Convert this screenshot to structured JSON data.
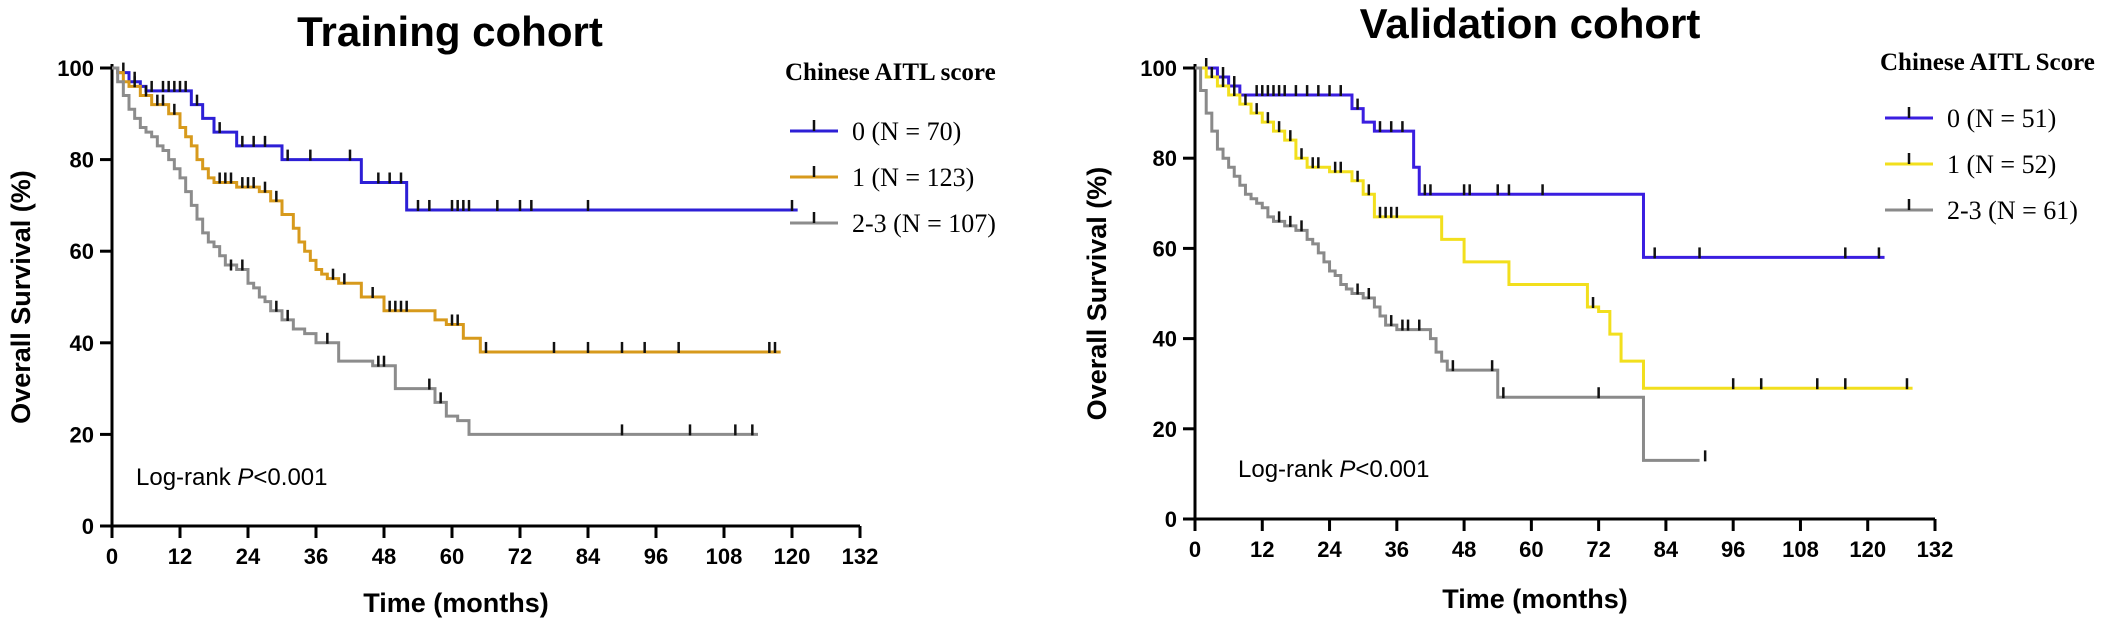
{
  "chart_data": [
    {
      "type": "line",
      "title": "Training cohort",
      "xlabel": "Time (months)",
      "ylabel": "Overall Survival (%)",
      "xlim": [
        0,
        132
      ],
      "ylim": [
        0,
        100
      ],
      "xticks": [
        "0",
        "12",
        "24",
        "36",
        "48",
        "60",
        "72",
        "84",
        "96",
        "108",
        "120",
        "132"
      ],
      "yticks": [
        "0",
        "20",
        "40",
        "60",
        "80",
        "100"
      ],
      "legend_title": "Chinese AITL score",
      "legend_position": "top-right",
      "annotation": {
        "prefix": "Log-rank ",
        "italic": "P",
        "suffix": "<0.001"
      },
      "series": [
        {
          "name": "0 (N = 70)",
          "color": "#2d1fd6",
          "x": [
            0,
            1,
            3,
            5,
            6,
            8,
            14,
            16,
            18,
            22,
            30,
            44,
            52,
            121
          ],
          "y": [
            100,
            99,
            97,
            96,
            95,
            95,
            92,
            89,
            86,
            83,
            80,
            75,
            69,
            69
          ],
          "censors": [
            [
              2,
              99
            ],
            [
              4,
              97
            ],
            [
              7,
              95
            ],
            [
              9,
              95
            ],
            [
              10,
              95
            ],
            [
              11,
              95
            ],
            [
              12,
              95
            ],
            [
              13,
              95
            ],
            [
              15,
              92
            ],
            [
              19,
              86
            ],
            [
              23,
              83
            ],
            [
              25,
              83
            ],
            [
              27,
              83
            ],
            [
              31,
              80
            ],
            [
              35,
              80
            ],
            [
              42,
              80
            ],
            [
              47,
              75
            ],
            [
              49,
              75
            ],
            [
              51,
              75
            ],
            [
              54,
              69
            ],
            [
              56,
              69
            ],
            [
              60,
              69
            ],
            [
              61,
              69
            ],
            [
              62,
              69
            ],
            [
              63,
              69
            ],
            [
              68,
              69
            ],
            [
              72,
              69
            ],
            [
              74,
              69
            ],
            [
              84,
              69
            ],
            [
              120,
              69
            ]
          ]
        },
        {
          "name": "1 (N = 123)",
          "color": "#d79a1c",
          "x": [
            0,
            1,
            2,
            3,
            5,
            7,
            10,
            12,
            13,
            14,
            15,
            16,
            17,
            18,
            22,
            26,
            28,
            30,
            32,
            33,
            34,
            35,
            36,
            37,
            38,
            40,
            44,
            48,
            53,
            57,
            59,
            62,
            65,
            118
          ],
          "y": [
            100,
            99,
            97,
            96,
            94,
            92,
            90,
            87,
            85,
            83,
            80,
            78,
            76,
            75,
            74,
            73,
            71,
            68,
            65,
            62,
            60,
            58,
            56,
            55,
            54,
            53,
            50,
            47,
            47,
            45,
            44,
            41,
            38,
            38
          ],
          "censors": [
            [
              4,
              96
            ],
            [
              6,
              94
            ],
            [
              8,
              92
            ],
            [
              9,
              92
            ],
            [
              11,
              90
            ],
            [
              19,
              75
            ],
            [
              20,
              75
            ],
            [
              21,
              75
            ],
            [
              23,
              74
            ],
            [
              24,
              74
            ],
            [
              25,
              74
            ],
            [
              27,
              73
            ],
            [
              29,
              71
            ],
            [
              39,
              54
            ],
            [
              41,
              53
            ],
            [
              46,
              50
            ],
            [
              49,
              47
            ],
            [
              50,
              47
            ],
            [
              51,
              47
            ],
            [
              52,
              47
            ],
            [
              60,
              44
            ],
            [
              61,
              44
            ],
            [
              66,
              38
            ],
            [
              78,
              38
            ],
            [
              84,
              38
            ],
            [
              90,
              38
            ],
            [
              94,
              38
            ],
            [
              100,
              38
            ],
            [
              116,
              38
            ],
            [
              117,
              38
            ]
          ]
        },
        {
          "name": "2-3 (N = 107)",
          "color": "#8c8c8c",
          "x": [
            0,
            1,
            2,
            3,
            4,
            5,
            6,
            7,
            8,
            9,
            10,
            11,
            12,
            13,
            14,
            15,
            16,
            17,
            18,
            19,
            20,
            22,
            24,
            25,
            26,
            27,
            28,
            30,
            32,
            34,
            36,
            40,
            46,
            50,
            55,
            57,
            59,
            61,
            63,
            114
          ],
          "y": [
            100,
            97,
            94,
            91,
            89,
            87,
            86,
            85,
            83,
            82,
            80,
            78,
            76,
            73,
            70,
            67,
            64,
            62,
            61,
            59,
            57,
            56,
            53,
            52,
            50,
            49,
            47,
            45,
            43,
            42,
            40,
            36,
            35,
            30,
            30,
            27,
            24,
            23,
            20,
            20
          ],
          "censors": [
            [
              21,
              56
            ],
            [
              23,
              56
            ],
            [
              29,
              47
            ],
            [
              31,
              45
            ],
            [
              38,
              40
            ],
            [
              47,
              35
            ],
            [
              48,
              35
            ],
            [
              56,
              30
            ],
            [
              58,
              27
            ],
            [
              90,
              20
            ],
            [
              102,
              20
            ],
            [
              110,
              20
            ],
            [
              113,
              20
            ]
          ]
        }
      ]
    },
    {
      "type": "line",
      "title": "Validation cohort",
      "xlabel": "Time (months)",
      "ylabel": "Overall Survival (%)",
      "xlim": [
        0,
        132
      ],
      "ylim": [
        0,
        100
      ],
      "xticks": [
        "0",
        "12",
        "24",
        "36",
        "48",
        "60",
        "72",
        "84",
        "96",
        "108",
        "120",
        "132"
      ],
      "yticks": [
        "0",
        "20",
        "40",
        "60",
        "80",
        "100"
      ],
      "legend_title": "Chinese AITL  Score",
      "legend_position": "top-right",
      "annotation": {
        "prefix": "Log-rank ",
        "italic": "P",
        "suffix": "<0.001"
      },
      "series": [
        {
          "name": "0 (N = 51)",
          "color": "#3a1ee0",
          "x": [
            0,
            4,
            6,
            8,
            10,
            28,
            30,
            32,
            39,
            40,
            80,
            123
          ],
          "y": [
            100,
            98,
            96,
            94,
            94,
            91,
            88,
            86,
            78,
            72,
            58,
            58
          ],
          "censors": [
            [
              2,
              100
            ],
            [
              5,
              98
            ],
            [
              7,
              96
            ],
            [
              11,
              94
            ],
            [
              12,
              94
            ],
            [
              13,
              94
            ],
            [
              14,
              94
            ],
            [
              15,
              94
            ],
            [
              16,
              94
            ],
            [
              18,
              94
            ],
            [
              20,
              94
            ],
            [
              22,
              94
            ],
            [
              24,
              94
            ],
            [
              26,
              94
            ],
            [
              29,
              91
            ],
            [
              33,
              86
            ],
            [
              35,
              86
            ],
            [
              37,
              86
            ],
            [
              41,
              72
            ],
            [
              42,
              72
            ],
            [
              48,
              72
            ],
            [
              49,
              72
            ],
            [
              54,
              72
            ],
            [
              56,
              72
            ],
            [
              62,
              72
            ],
            [
              82,
              58
            ],
            [
              90,
              58
            ],
            [
              116,
              58
            ],
            [
              122,
              58
            ]
          ]
        },
        {
          "name": "1 (N = 52)",
          "color": "#f2df1d",
          "x": [
            0,
            2,
            4,
            6,
            8,
            10,
            12,
            14,
            16,
            18,
            20,
            24,
            28,
            30,
            32,
            44,
            48,
            56,
            70,
            72,
            74,
            76,
            80,
            128
          ],
          "y": [
            100,
            98,
            96,
            94,
            92,
            90,
            88,
            86,
            84,
            80,
            78,
            77,
            75,
            72,
            67,
            62,
            57,
            52,
            47,
            46,
            41,
            35,
            29,
            29
          ],
          "censors": [
            [
              3,
              98
            ],
            [
              5,
              96
            ],
            [
              7,
              94
            ],
            [
              9,
              92
            ],
            [
              11,
              90
            ],
            [
              13,
              88
            ],
            [
              15,
              86
            ],
            [
              17,
              84
            ],
            [
              19,
              80
            ],
            [
              21,
              78
            ],
            [
              22,
              78
            ],
            [
              25,
              77
            ],
            [
              26,
              77
            ],
            [
              29,
              75
            ],
            [
              31,
              72
            ],
            [
              33,
              67
            ],
            [
              34,
              67
            ],
            [
              35,
              67
            ],
            [
              36,
              67
            ],
            [
              71,
              47
            ],
            [
              96,
              29
            ],
            [
              101,
              29
            ],
            [
              111,
              29
            ],
            [
              116,
              29
            ],
            [
              127,
              29
            ]
          ]
        },
        {
          "name": "2-3 (N = 61)",
          "color": "#8a8a8a",
          "x": [
            0,
            1,
            2,
            3,
            4,
            5,
            6,
            7,
            8,
            9,
            10,
            11,
            12,
            13,
            14,
            16,
            18,
            20,
            21,
            22,
            23,
            24,
            25,
            26,
            27,
            28,
            30,
            32,
            33,
            34,
            36,
            42,
            43,
            44,
            45,
            54,
            80,
            90
          ],
          "y": [
            100,
            95,
            90,
            86,
            82,
            80,
            78,
            76,
            74,
            72,
            71,
            70,
            69,
            67,
            66,
            65,
            64,
            62,
            61,
            59,
            57,
            55,
            54,
            52,
            51,
            50,
            49,
            47,
            45,
            43,
            42,
            40,
            37,
            35,
            33,
            27,
            13,
            13
          ],
          "censors": [
            [
              15,
              66
            ],
            [
              17,
              65
            ],
            [
              19,
              64
            ],
            [
              29,
              50
            ],
            [
              31,
              49
            ],
            [
              35,
              43
            ],
            [
              37,
              42
            ],
            [
              38,
              42
            ],
            [
              40,
              42
            ],
            [
              46,
              33
            ],
            [
              53,
              33
            ],
            [
              55,
              27
            ],
            [
              72,
              27
            ],
            [
              91,
              13
            ]
          ]
        }
      ]
    }
  ]
}
